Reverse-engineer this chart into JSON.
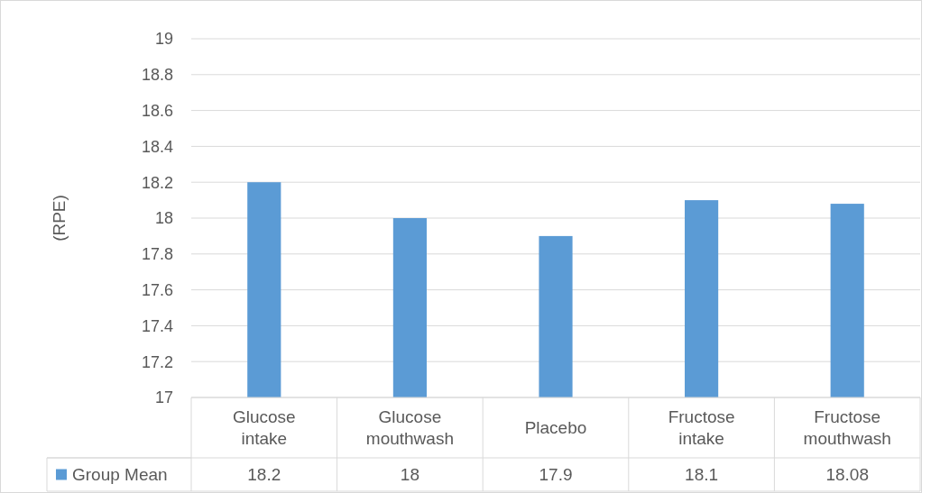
{
  "chart_data": {
    "type": "bar",
    "ylabel": "(RPE)",
    "categories": [
      "Glucose intake",
      "Glucose mouthwash",
      "Placebo",
      "Fructose intake",
      "Fructose mouthwash"
    ],
    "series": [
      {
        "name": "Group Mean",
        "color": "#5b9bd5",
        "values": [
          18.2,
          18,
          17.9,
          18.1,
          18.08
        ]
      }
    ],
    "ylim": [
      17,
      19
    ],
    "yticks": [
      17,
      17.2,
      17.4,
      17.6,
      17.8,
      18,
      18.2,
      18.4,
      18.6,
      18.8,
      19
    ],
    "grid": "y",
    "data_labels": true,
    "legend": "bottom"
  }
}
